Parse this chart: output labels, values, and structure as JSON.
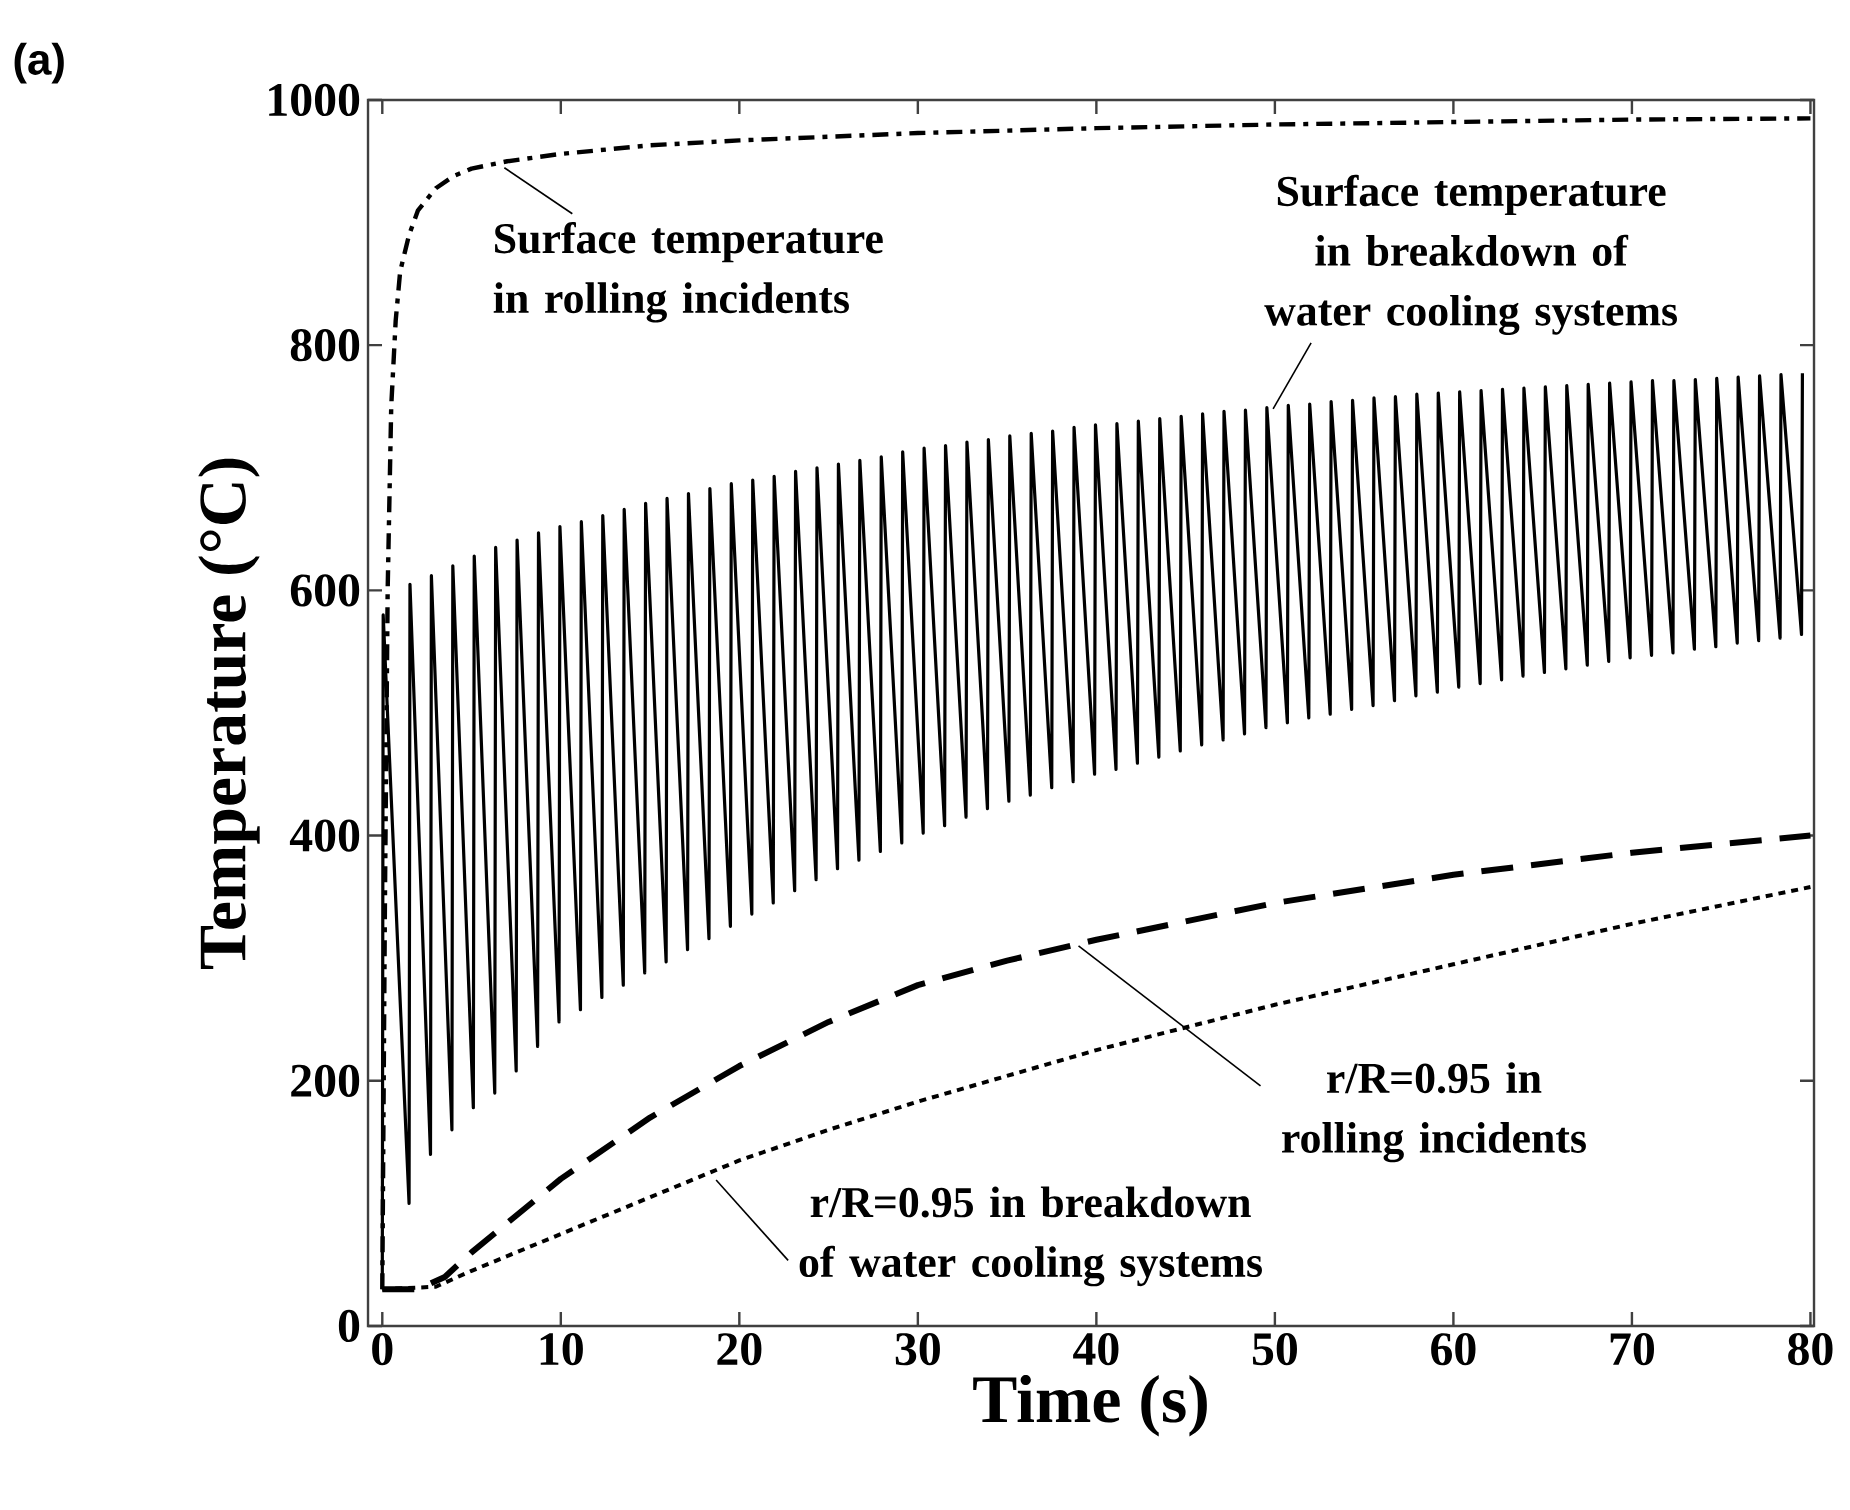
{
  "chart_data": {
    "type": "line",
    "xlabel": "Time (s)",
    "ylabel": "Temperature (°C)",
    "xlim": [
      -0.8,
      80.2
    ],
    "ylim": [
      0,
      1000
    ],
    "xticks": [
      0,
      10,
      20,
      30,
      40,
      50,
      60,
      70,
      80
    ],
    "yticks": [
      0,
      200,
      400,
      600,
      800,
      1000
    ],
    "grid": false,
    "marker": "none",
    "series": [
      {
        "color": "#000000",
        "line_style": "dashdot",
        "x": [
          0,
          0.15,
          0.3,
          0.5,
          0.75,
          1,
          1.5,
          2,
          3,
          4,
          5,
          7,
          10,
          15,
          20,
          30,
          40,
          50,
          60,
          70,
          80
        ],
        "values": [
          30,
          350,
          600,
          750,
          820,
          860,
          890,
          910,
          928,
          938,
          944,
          950,
          956,
          963,
          967,
          973,
          977,
          980,
          982,
          984,
          985
        ]
      },
      {
        "color": "#000000",
        "line_style": "solid",
        "x": [
          0,
          0.05,
          1.5,
          1.55,
          2.7,
          2.75,
          3.9,
          3.95,
          5.1,
          5.15,
          6.3,
          6.35,
          7.5,
          7.55,
          8.7,
          8.75,
          9.9,
          9.95,
          11.1,
          11.15,
          12.3,
          12.35,
          13.5,
          13.55,
          14.7,
          14.75,
          15.9,
          15.95,
          17.1,
          17.15,
          18.3,
          18.35,
          19.5,
          19.55,
          20.7,
          20.75,
          21.9,
          21.95,
          23.1,
          23.15,
          24.3,
          24.35,
          25.5,
          25.55,
          26.7,
          26.75,
          27.9,
          27.95,
          29.1,
          29.15,
          30.3,
          30.35,
          31.5,
          31.55,
          32.7,
          32.75,
          33.9,
          33.95,
          35.1,
          35.15,
          36.3,
          36.35,
          37.5,
          37.55,
          38.7,
          38.75,
          39.9,
          39.95,
          41.1,
          41.15,
          42.3,
          42.35,
          43.5,
          43.55,
          44.7,
          44.75,
          45.9,
          45.95,
          47.1,
          47.15,
          48.3,
          48.35,
          49.5,
          49.55,
          50.7,
          50.75,
          51.9,
          51.95,
          53.1,
          53.15,
          54.3,
          54.35,
          55.5,
          55.55,
          56.7,
          56.75,
          57.9,
          57.95,
          59.1,
          59.15,
          60.3,
          60.35,
          61.5,
          61.55,
          62.7,
          62.75,
          63.9,
          63.95,
          65.1,
          65.15,
          66.3,
          66.35,
          67.5,
          67.55,
          68.7,
          68.75,
          69.9,
          69.95,
          71.1,
          71.15,
          72.3,
          72.35,
          73.5,
          73.55,
          74.7,
          74.75,
          75.9,
          75.95,
          77.1,
          77.15,
          78.3,
          78.35,
          79.5,
          79.55
        ],
        "values": [
          30,
          580,
          100,
          605,
          140,
          612,
          160,
          620,
          178,
          628,
          190,
          635,
          208,
          641,
          228,
          647,
          248,
          652,
          258,
          656,
          268,
          661,
          278,
          666,
          288,
          671,
          297,
          675,
          307,
          679,
          316,
          683,
          326,
          687,
          336,
          690,
          345,
          693,
          355,
          697,
          364,
          700,
          373,
          703,
          380,
          706,
          387,
          709,
          394,
          713,
          402,
          716,
          408,
          718,
          415,
          721,
          422,
          723,
          428,
          726,
          433,
          728,
          439,
          730,
          444,
          733,
          450,
          735,
          454,
          736,
          459,
          738,
          464,
          740,
          469,
          742,
          474,
          744,
          478,
          746,
          483,
          747,
          488,
          749,
          492,
          751,
          496,
          752,
          499,
          754,
          503,
          755,
          506,
          757,
          510,
          758,
          514,
          760,
          517,
          761,
          521,
          762,
          524,
          763,
          527,
          764,
          530,
          765,
          533,
          766,
          536,
          767,
          539,
          768,
          542,
          769,
          545,
          770,
          547,
          771,
          549,
          771,
          552,
          772,
          554,
          773,
          557,
          774,
          559,
          775,
          561,
          776,
          564,
          777
        ]
      },
      {
        "color": "#000000",
        "line_style": "dashed",
        "x": [
          0,
          2,
          3.5,
          5,
          7.5,
          10,
          15,
          20,
          25,
          30,
          35,
          40,
          50,
          60,
          70,
          80
        ],
        "values": [
          30,
          30,
          40,
          60,
          90,
          120,
          170,
          212,
          248,
          278,
          298,
          315,
          345,
          368,
          386,
          400
        ]
      },
      {
        "color": "#000000",
        "line_style": "dotted",
        "x": [
          0,
          3,
          5,
          7.5,
          10,
          15,
          20,
          25,
          30,
          40,
          50,
          60,
          70,
          80
        ],
        "values": [
          30,
          32,
          45,
          60,
          75,
          105,
          135,
          160,
          183,
          225,
          262,
          295,
          328,
          358
        ]
      }
    ],
    "annotations": [
      "(a)",
      {
        "text": "Surface temperature in rolling incidents",
        "x": 6.5,
        "y": 948
      },
      {
        "text": "Surface temperature in breakdown of water cooling systems",
        "x": 49.9,
        "y": 748
      },
      {
        "text": "r/R=0.95 in rolling incidents",
        "x": 39,
        "y": 310
      },
      {
        "text": "r/R=0.95 in breakdown of water cooling systems",
        "x": 18.7,
        "y": 119
      }
    ]
  }
}
